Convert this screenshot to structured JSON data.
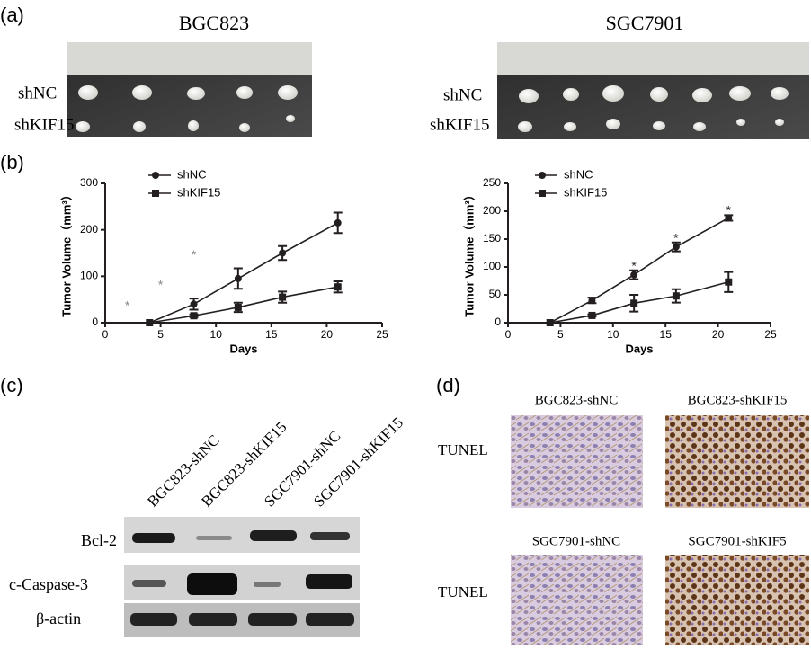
{
  "panel_a": {
    "label": "(a)",
    "title_left": "BGC823",
    "title_right": "SGC7901",
    "rows_left": [
      "shNC",
      "shKIF15"
    ],
    "rows_right": [
      "shNC",
      "shKIF15"
    ]
  },
  "panel_b": {
    "label": "(b)"
  },
  "panel_c": {
    "label": "(c)",
    "lanes": [
      "BGC823-shNC",
      "BGC823-shKIF15",
      "SGC7901-shNC",
      "SGC7901-shKIF15"
    ],
    "proteins": [
      "Bcl-2",
      "c-Caspase-3",
      "β-actin"
    ]
  },
  "panel_d": {
    "label": "(d)",
    "images": [
      "BGC823-shNC",
      "BGC823-shKIF15",
      "SGC7901-shNC",
      "SGC7901-shKIF5"
    ],
    "rows": [
      "TUNEL",
      "TUNEL"
    ]
  },
  "chart_data": [
    {
      "type": "line",
      "xlabel": "Days",
      "ylabel": "Tumor Volume（mm³）",
      "xlim": [
        0,
        25
      ],
      "xticks": [
        0,
        5,
        10,
        15,
        20,
        25
      ],
      "ylim": [
        0,
        300
      ],
      "yticks": [
        0,
        100,
        200,
        300
      ],
      "x": [
        4,
        8,
        12,
        16,
        21
      ],
      "series": [
        {
          "name": "shNC",
          "color": "#231f20",
          "marker": "circle",
          "values": [
            0,
            40,
            95,
            150,
            215
          ],
          "errors": [
            0,
            12,
            22,
            15,
            22
          ]
        },
        {
          "name": "shKIF15",
          "color": "#231f20",
          "marker": "square",
          "values": [
            0,
            15,
            33,
            55,
            77
          ],
          "errors": [
            0,
            3,
            10,
            12,
            12
          ]
        }
      ],
      "annotation_color": "#888888",
      "annotations": [
        {
          "text": "*",
          "x": 2,
          "y": 35
        },
        {
          "text": "*",
          "x": 5,
          "y": 80
        },
        {
          "text": "*",
          "x": 8,
          "y": 145
        }
      ]
    },
    {
      "type": "line",
      "xlabel": "Days",
      "ylabel": "Tumor Volume（mm³）",
      "xlim": [
        0,
        25
      ],
      "xticks": [
        0,
        5,
        10,
        15,
        20,
        25
      ],
      "ylim": [
        0,
        250
      ],
      "yticks": [
        0,
        50,
        100,
        150,
        200,
        250
      ],
      "x": [
        4,
        8,
        12,
        16,
        21
      ],
      "series": [
        {
          "name": "shNC",
          "color": "#231f20",
          "marker": "circle",
          "values": [
            0,
            40,
            86,
            136,
            188
          ],
          "errors": [
            0,
            5,
            8,
            8,
            5
          ]
        },
        {
          "name": "shKIF15",
          "color": "#231f20",
          "marker": "square",
          "values": [
            0,
            13,
            35,
            48,
            73
          ],
          "errors": [
            0,
            2,
            15,
            12,
            18
          ]
        }
      ],
      "annotation_color": "#231f20",
      "annotations": [
        {
          "text": "*",
          "x": 12,
          "y": 100
        },
        {
          "text": "*",
          "x": 16,
          "y": 150
        },
        {
          "text": "*",
          "x": 21,
          "y": 200
        }
      ]
    }
  ]
}
